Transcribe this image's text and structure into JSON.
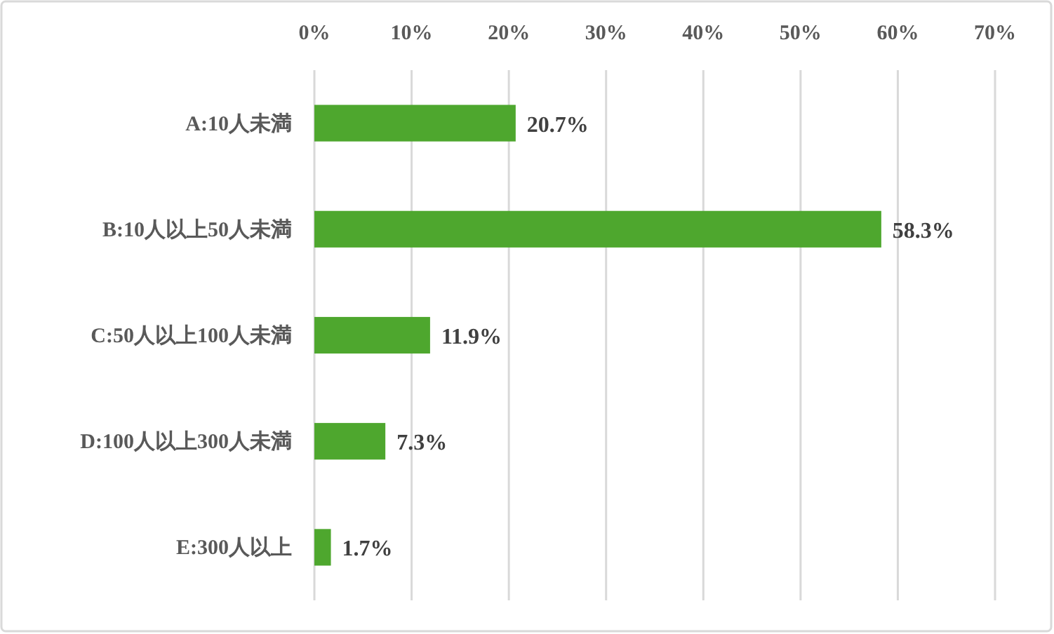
{
  "chart_data": {
    "type": "bar",
    "orientation": "horizontal",
    "categories": [
      "A:10人未満",
      "B:10人以上50人未満",
      "C:50人以上100人未満",
      "D:100人以上300人未満",
      "E:300人以上"
    ],
    "values": [
      20.7,
      58.3,
      11.9,
      7.3,
      1.7
    ],
    "value_labels": [
      "20.7%",
      "58.3%",
      "11.9%",
      "7.3%",
      "1.7%"
    ],
    "color": "#4ea72e",
    "xlim": [
      0,
      70
    ],
    "xticks": [
      {
        "value": 0,
        "label": "0%"
      },
      {
        "value": 10,
        "label": "10%"
      },
      {
        "value": 20,
        "label": "20%"
      },
      {
        "value": 30,
        "label": "30%"
      },
      {
        "value": 40,
        "label": "40%"
      },
      {
        "value": 50,
        "label": "50%"
      },
      {
        "value": 60,
        "label": "60%"
      },
      {
        "value": 70,
        "label": "70%"
      }
    ],
    "grid": "x"
  }
}
